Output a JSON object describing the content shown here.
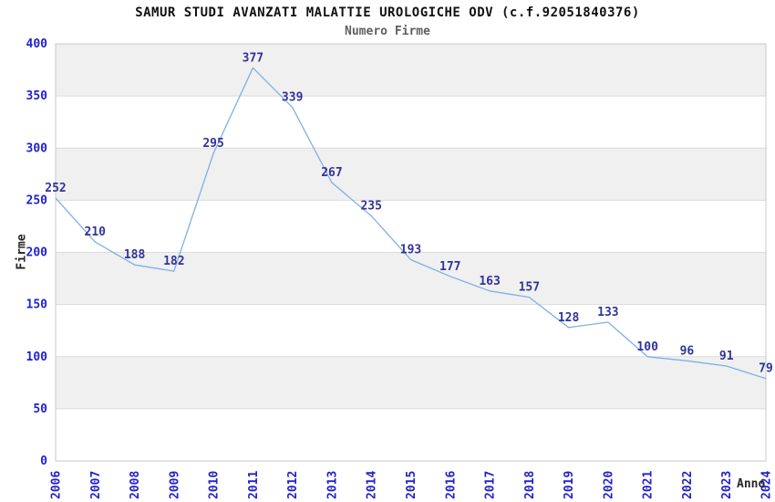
{
  "chart_data": {
    "type": "line",
    "title": "SAMUR STUDI AVANZATI MALATTIE UROLOGICHE ODV (c.f.92051840376)",
    "subtitle": "Numero Firme",
    "xlabel": "Anno",
    "ylabel": "Firme",
    "categories": [
      "2006",
      "2007",
      "2008",
      "2009",
      "2010",
      "2011",
      "2012",
      "2013",
      "2014",
      "2015",
      "2016",
      "2017",
      "2018",
      "2019",
      "2020",
      "2021",
      "2022",
      "2023",
      "2024"
    ],
    "values": [
      252,
      210,
      188,
      182,
      295,
      377,
      339,
      267,
      235,
      193,
      177,
      163,
      157,
      128,
      133,
      100,
      96,
      91,
      79
    ],
    "ylim": [
      0,
      400
    ],
    "ytick_step": 50,
    "grid": "horizontal-bands-alternating",
    "legend": "none",
    "show_point_markers": false,
    "colors": {
      "line": "#7EB0E4",
      "point_label": "#333399",
      "tick_label": "#2222CC",
      "band_fill": "#F0F0F0",
      "band_alt_fill": "#FFFFFF",
      "gridline": "#DBDBDB",
      "plot_border": "#C8C8C8",
      "title": "#111111",
      "subtitle": "#5F5F5F",
      "axis_title": "#262626"
    }
  }
}
